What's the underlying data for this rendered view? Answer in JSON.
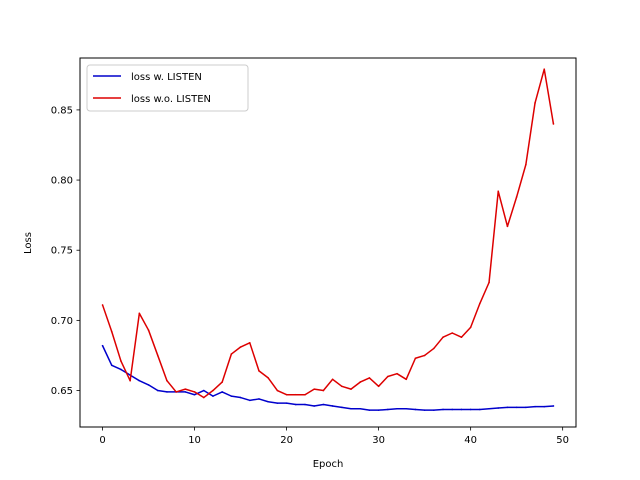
{
  "chart_data": {
    "type": "line",
    "title": "",
    "xlabel": "Epoch",
    "ylabel": "Loss",
    "xlim": [
      -2.45,
      51.45
    ],
    "ylim": [
      0.624,
      0.887
    ],
    "xticks": [
      0,
      10,
      20,
      30,
      40,
      50
    ],
    "yticks": [
      0.65,
      0.7,
      0.75,
      0.8,
      0.85
    ],
    "grid": false,
    "legend": "upper-left",
    "x": [
      0,
      1,
      2,
      3,
      4,
      5,
      6,
      7,
      8,
      9,
      10,
      11,
      12,
      13,
      14,
      15,
      16,
      17,
      18,
      19,
      20,
      21,
      22,
      23,
      24,
      25,
      26,
      27,
      28,
      29,
      30,
      31,
      32,
      33,
      34,
      35,
      36,
      37,
      38,
      39,
      40,
      41,
      42,
      43,
      44,
      45,
      46,
      47,
      48,
      49
    ],
    "series": [
      {
        "name": "loss w. LISTEN",
        "color": "#0000cc",
        "values": [
          0.682,
          0.668,
          0.665,
          0.661,
          0.657,
          0.654,
          0.65,
          0.649,
          0.649,
          0.649,
          0.647,
          0.65,
          0.646,
          0.649,
          0.646,
          0.645,
          0.643,
          0.644,
          0.642,
          0.641,
          0.641,
          0.64,
          0.64,
          0.639,
          0.64,
          0.639,
          0.638,
          0.637,
          0.637,
          0.636,
          0.636,
          0.6365,
          0.637,
          0.637,
          0.6365,
          0.636,
          0.636,
          0.6365,
          0.6365,
          0.6365,
          0.6365,
          0.6365,
          0.637,
          0.6375,
          0.638,
          0.638,
          0.638,
          0.6385,
          0.6385,
          0.639
        ]
      },
      {
        "name": "loss w.o. LISTEN",
        "color": "#dd0000",
        "values": [
          0.711,
          0.692,
          0.671,
          0.657,
          0.705,
          0.693,
          0.675,
          0.657,
          0.649,
          0.651,
          0.649,
          0.645,
          0.65,
          0.656,
          0.676,
          0.681,
          0.684,
          0.664,
          0.659,
          0.65,
          0.647,
          0.647,
          0.647,
          0.651,
          0.65,
          0.658,
          0.653,
          0.651,
          0.656,
          0.659,
          0.653,
          0.66,
          0.662,
          0.658,
          0.673,
          0.675,
          0.68,
          0.688,
          0.691,
          0.688,
          0.695,
          0.712,
          0.727,
          0.792,
          0.767,
          0.788,
          0.811,
          0.855,
          0.879,
          0.84
        ]
      }
    ]
  }
}
